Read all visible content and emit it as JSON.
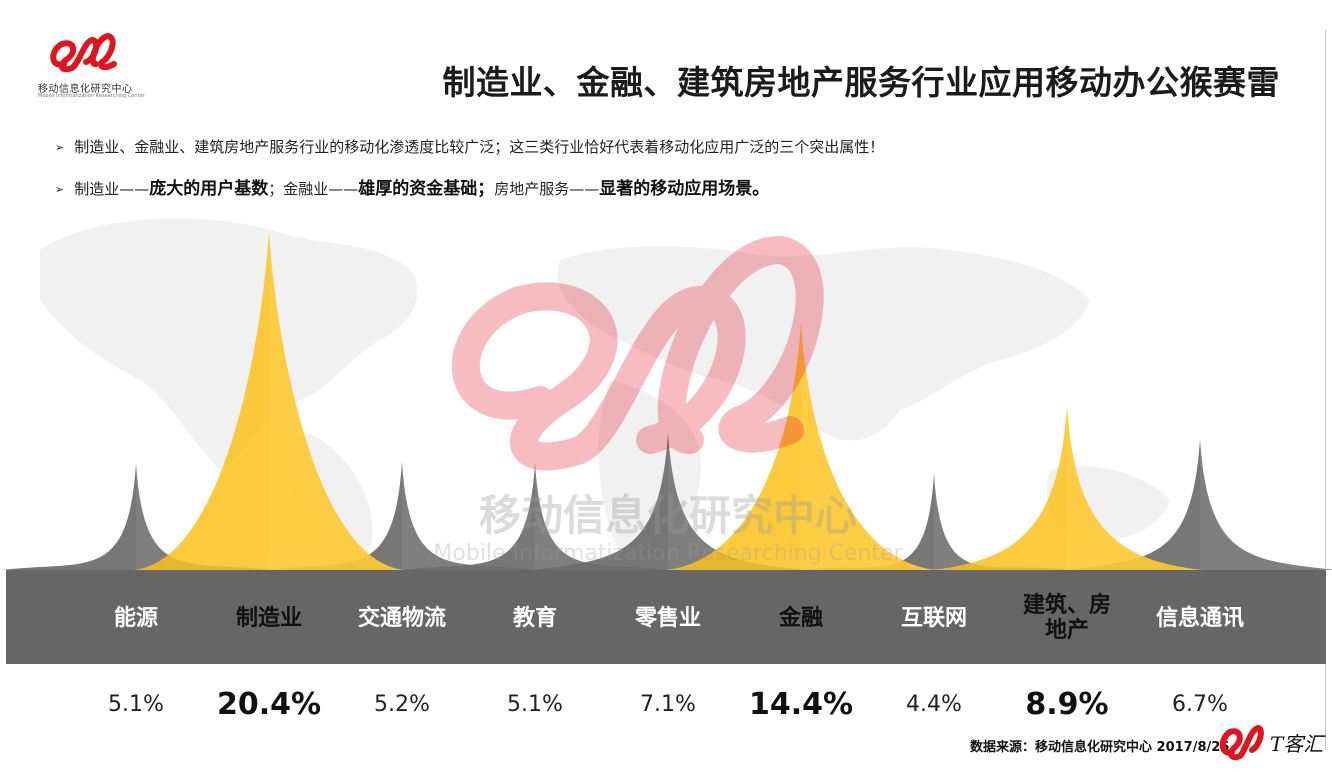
{
  "logo": {
    "name_cn": "移动信息化研究中心",
    "name_en": "Mobile Informatization Researching Center",
    "color": "#e0141e"
  },
  "title": "制造业、金融、建筑房地产服务行业应用移动办公猴赛雷",
  "bullets": {
    "b1": {
      "arrow": "➢",
      "text": "制造业、金融业、建筑房地产服务行业的移动化渗透度比较广泛；这三类行业恰好代表着移动化应用广泛的三个突出属性！"
    },
    "b2": {
      "arrow": "➢",
      "t1": "制造业——",
      "b1": "庞大的用户基数",
      "t2": "；金融业——",
      "b2": "雄厚的资金基础；",
      "t3": "房地产服务——",
      "b3": "显著的移动应用场景。"
    }
  },
  "watermark": {
    "cn": "移动信息化研究中心",
    "en": "Mobile Informatization Researching Center"
  },
  "chart_data": {
    "type": "area",
    "style": "peak chart",
    "categories": [
      "能源",
      "制造业",
      "交通物流",
      "教育",
      "零售业",
      "金融",
      "互联网",
      "建筑、房地产",
      "信息通讯"
    ],
    "values": [
      5.1,
      20.4,
      5.2,
      5.1,
      7.1,
      14.4,
      4.4,
      8.9,
      6.7
    ],
    "value_labels": [
      "5.1%",
      "20.4%",
      "5.2%",
      "5.1%",
      "7.1%",
      "14.4%",
      "4.4%",
      "8.9%",
      "6.7%"
    ],
    "highlighted": [
      false,
      true,
      false,
      false,
      false,
      true,
      false,
      true,
      false
    ],
    "colors": {
      "gray": "#6b6b6b",
      "gray_light": "#8a8a8a",
      "yellow": "#fcc21b",
      "yellow_light": "#ffd24d",
      "band": "#666666"
    }
  },
  "source": "数据来源：移动信息化研究中心 2017/8/26",
  "corner": {
    "text": "T客汇"
  }
}
